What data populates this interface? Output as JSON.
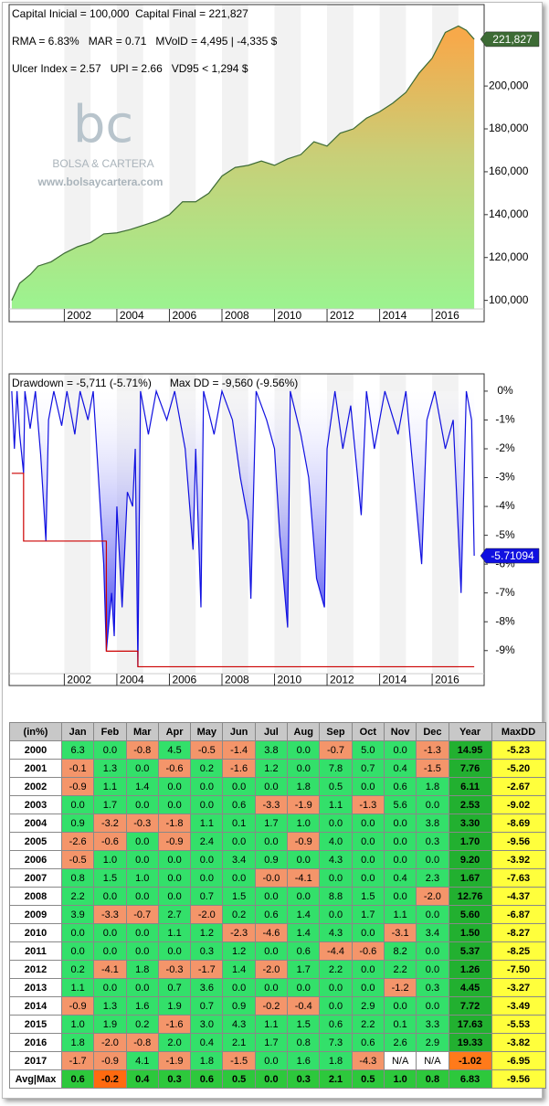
{
  "chart_data": [
    {
      "type": "line",
      "annotations": [
        "Capital Inicial = 100,000  Capital Final = 221,827",
        "RMA = 6.83%   MAR = 0.71   MVolD = 4,495 | -4,335 $",
        "Ulcer Index = 2.57   UPI = 2.66   VD95 < 1,294 $"
      ],
      "watermark": {
        "logo": "bc",
        "name": "BOLSA & CARTERA",
        "url": "www.bolsaycartera.com"
      },
      "xlim": [
        1999.9,
        2017.7
      ],
      "xticks": [
        2002,
        2004,
        2006,
        2008,
        2010,
        2012,
        2014,
        2016
      ],
      "ylim": [
        96000,
        238000
      ],
      "yticks": [
        {
          "value": 100000,
          "label": "100,000"
        },
        {
          "value": 120000,
          "label": "120,000"
        },
        {
          "value": 140000,
          "label": "140,000"
        },
        {
          "value": 160000,
          "label": "160,000"
        },
        {
          "value": 180000,
          "label": "180,000"
        },
        {
          "value": 200000,
          "label": "200,000"
        }
      ],
      "series": [
        {
          "name": "Capital",
          "color": "#3d6b35",
          "area": true,
          "end_label": "221,827",
          "x": [
            2000,
            2000.3,
            2000.7,
            2001,
            2001.5,
            2002,
            2002.5,
            2003,
            2003.5,
            2004,
            2004.5,
            2005,
            2005.5,
            2006,
            2006.5,
            2007,
            2007.5,
            2008,
            2008.5,
            2009,
            2009.5,
            2010,
            2010.5,
            2011,
            2011.5,
            2012,
            2012.5,
            2013,
            2013.5,
            2014,
            2014.5,
            2015,
            2015.5,
            2016,
            2016.5,
            2017,
            2017.3,
            2017.6
          ],
          "values": [
            100000,
            108000,
            112000,
            116000,
            118000,
            122000,
            125000,
            127000,
            131000,
            131500,
            133000,
            135000,
            137000,
            140000,
            146000,
            146000,
            150000,
            158000,
            162000,
            163000,
            165000,
            163000,
            166000,
            168000,
            174000,
            172000,
            178000,
            180000,
            185000,
            188000,
            192000,
            197000,
            206000,
            213000,
            225000,
            228000,
            226000,
            221827
          ]
        }
      ]
    },
    {
      "type": "line",
      "annotations": [
        "Drawdown = -5,711 (-5.71%)      Max DD = -9,560 (-9.56%)"
      ],
      "xlim": [
        1999.9,
        2017.7
      ],
      "xticks": [
        2002,
        2004,
        2006,
        2008,
        2010,
        2012,
        2014,
        2016
      ],
      "ylim": [
        -9.8,
        0.6
      ],
      "yticks": [
        {
          "value": 0,
          "label": "0%"
        },
        {
          "value": -1,
          "label": "-1%"
        },
        {
          "value": -2,
          "label": "-2%"
        },
        {
          "value": -3,
          "label": "-3%"
        },
        {
          "value": -4,
          "label": "-4%"
        },
        {
          "value": -5,
          "label": "-5%"
        },
        {
          "value": -6,
          "label": "-6%"
        },
        {
          "value": -7,
          "label": "-7%"
        },
        {
          "value": -8,
          "label": "-8%"
        },
        {
          "value": -9,
          "label": "-9%"
        }
      ],
      "series": [
        {
          "name": "Drawdown",
          "color": "#1010e0",
          "area": true,
          "end_label": "-5.71094",
          "x": [
            2000,
            2000.1,
            2000.2,
            2000.3,
            2000.45,
            2000.5,
            2000.7,
            2000.9,
            2001.1,
            2001.3,
            2001.4,
            2001.6,
            2001.9,
            2002.1,
            2002.4,
            2002.6,
            2002.9,
            2003.1,
            2003.3,
            2003.5,
            2003.6,
            2003.8,
            2003.9,
            2004,
            2004.2,
            2004.4,
            2004.6,
            2004.7,
            2004.8,
            2004.9,
            2005.2,
            2005.5,
            2005.9,
            2006.2,
            2006.6,
            2006.9,
            2007,
            2007.2,
            2007.3,
            2007.7,
            2008,
            2008.4,
            2008.7,
            2009,
            2009.1,
            2009.3,
            2009.7,
            2010,
            2010.2,
            2010.5,
            2010.6,
            2011,
            2011.3,
            2011.6,
            2011.9,
            2012,
            2012.3,
            2012.6,
            2012.9,
            2013.3,
            2013.5,
            2013.8,
            2014.2,
            2014.7,
            2015,
            2015.3,
            2015.6,
            2015.8,
            2016.1,
            2016.5,
            2016.8,
            2017.1,
            2017.3,
            2017.5,
            2017.6
          ],
          "values": [
            0,
            -2,
            0,
            -1.5,
            -2.85,
            0,
            -1.3,
            0,
            -2.2,
            -5.2,
            -1,
            0,
            -1.2,
            0,
            -1.5,
            0,
            -1,
            0,
            -3,
            -6,
            -9.02,
            -7,
            -8.5,
            -4,
            -7.5,
            -3.5,
            -4,
            -2,
            -9.56,
            0,
            -1.5,
            0,
            -1,
            0,
            -2,
            -5.5,
            -2,
            -7.5,
            0,
            -1.5,
            0,
            -1,
            -3,
            -4.5,
            -7.2,
            0,
            -1,
            -2,
            -5,
            -8.2,
            0,
            -1.5,
            -3,
            -6.5,
            -7.5,
            -2,
            0,
            -2,
            -0.5,
            -4.3,
            0,
            -2,
            0,
            -1.5,
            0,
            -3,
            -6,
            -1,
            0,
            -2,
            -1,
            -7,
            0,
            -1,
            -5.71094
          ]
        },
        {
          "name": "Max DD",
          "color": "#cc0000",
          "area": false,
          "x": [
            2000,
            2000.45,
            2000.45,
            2003.6,
            2003.6,
            2004.8,
            2004.8,
            2017.6
          ],
          "values": [
            -2.85,
            -2.85,
            -5.2,
            -5.2,
            -9.02,
            -9.02,
            -9.56,
            -9.56
          ]
        }
      ]
    }
  ],
  "table": {
    "header": [
      "(in%)",
      "Jan",
      "Feb",
      "Mar",
      "Apr",
      "May",
      "Jun",
      "Jul",
      "Aug",
      "Sep",
      "Oct",
      "Nov",
      "Dec",
      "Year",
      "MaxDD"
    ],
    "rows": [
      [
        "2000",
        "6.3",
        "0.0",
        "-0.8",
        "4.5",
        "-0.5",
        "-1.4",
        "3.8",
        "0.0",
        "-0.7",
        "5.0",
        "0.0",
        "-1.3",
        "14.95",
        "-5.23"
      ],
      [
        "2001",
        "-0.1",
        "1.3",
        "0.0",
        "-0.6",
        "0.2",
        "-1.6",
        "1.2",
        "0.0",
        "7.8",
        "0.7",
        "0.4",
        "-1.5",
        "7.76",
        "-5.20"
      ],
      [
        "2002",
        "-0.9",
        "1.1",
        "1.4",
        "0.0",
        "0.0",
        "0.0",
        "0.0",
        "1.8",
        "0.5",
        "0.0",
        "0.6",
        "1.8",
        "6.11",
        "-2.67"
      ],
      [
        "2003",
        "0.0",
        "1.7",
        "0.0",
        "0.0",
        "0.0",
        "0.6",
        "-3.3",
        "-1.9",
        "1.1",
        "-1.3",
        "5.6",
        "0.0",
        "2.53",
        "-9.02"
      ],
      [
        "2004",
        "0.9",
        "-3.2",
        "-0.3",
        "-1.8",
        "1.1",
        "0.1",
        "1.7",
        "1.0",
        "0.0",
        "0.0",
        "0.0",
        "3.8",
        "3.30",
        "-8.69"
      ],
      [
        "2005",
        "-2.6",
        "-0.6",
        "0.0",
        "-0.9",
        "2.4",
        "0.0",
        "0.0",
        "-0.9",
        "4.0",
        "0.0",
        "0.0",
        "0.3",
        "1.70",
        "-9.56"
      ],
      [
        "2006",
        "-0.5",
        "1.0",
        "0.0",
        "0.0",
        "0.0",
        "3.4",
        "0.9",
        "0.0",
        "4.3",
        "0.0",
        "0.0",
        "0.0",
        "9.20",
        "-3.92"
      ],
      [
        "2007",
        "0.8",
        "1.5",
        "1.0",
        "0.0",
        "0.0",
        "0.0",
        "-0.0",
        "-4.1",
        "0.0",
        "0.0",
        "0.4",
        "2.3",
        "1.67",
        "-7.63"
      ],
      [
        "2008",
        "2.2",
        "0.0",
        "0.0",
        "0.0",
        "0.7",
        "1.5",
        "0.0",
        "0.0",
        "8.8",
        "1.5",
        "0.0",
        "-2.0",
        "12.76",
        "-4.37"
      ],
      [
        "2009",
        "3.9",
        "-3.3",
        "-0.7",
        "2.7",
        "-2.0",
        "0.2",
        "0.6",
        "1.4",
        "0.0",
        "1.7",
        "1.1",
        "0.0",
        "5.60",
        "-6.87"
      ],
      [
        "2010",
        "0.0",
        "0.0",
        "0.0",
        "1.1",
        "1.2",
        "-2.3",
        "-4.6",
        "1.4",
        "4.3",
        "0.0",
        "-3.1",
        "3.4",
        "1.50",
        "-8.27"
      ],
      [
        "2011",
        "0.0",
        "0.0",
        "0.0",
        "0.0",
        "0.3",
        "1.2",
        "0.0",
        "0.6",
        "-4.4",
        "-0.6",
        "8.2",
        "0.0",
        "5.37",
        "-8.25"
      ],
      [
        "2012",
        "0.2",
        "-4.1",
        "1.8",
        "-0.3",
        "-1.7",
        "1.4",
        "-2.0",
        "1.7",
        "2.2",
        "0.0",
        "2.2",
        "0.0",
        "1.26",
        "-7.50"
      ],
      [
        "2013",
        "1.1",
        "0.0",
        "0.0",
        "0.7",
        "3.6",
        "0.0",
        "0.0",
        "0.0",
        "0.0",
        "0.0",
        "-1.2",
        "0.3",
        "4.45",
        "-3.27"
      ],
      [
        "2014",
        "-0.9",
        "1.3",
        "1.6",
        "1.9",
        "0.7",
        "0.9",
        "-0.2",
        "-0.4",
        "0.0",
        "2.9",
        "0.0",
        "0.0",
        "7.72",
        "-3.49"
      ],
      [
        "2015",
        "1.0",
        "1.9",
        "0.2",
        "-1.6",
        "3.0",
        "4.3",
        "1.1",
        "1.5",
        "0.6",
        "2.2",
        "0.1",
        "3.3",
        "17.63",
        "-5.53"
      ],
      [
        "2016",
        "1.8",
        "-2.0",
        "-0.8",
        "2.0",
        "0.4",
        "2.1",
        "1.7",
        "0.8",
        "7.3",
        "0.6",
        "2.6",
        "2.9",
        "19.33",
        "-3.82"
      ],
      [
        "2017",
        "-1.7",
        "-0.9",
        "4.1",
        "-1.9",
        "1.8",
        "-1.5",
        "0.0",
        "1.6",
        "1.8",
        "-4.3",
        "N/A",
        "N/A",
        "-1.02",
        "-6.95"
      ],
      [
        "Avg|Max",
        "0.6",
        "-0.2",
        "0.4",
        "0.3",
        "0.6",
        "0.5",
        "0.0",
        "0.3",
        "2.1",
        "0.5",
        "1.0",
        "0.8",
        "6.83",
        "-9.56"
      ]
    ]
  }
}
